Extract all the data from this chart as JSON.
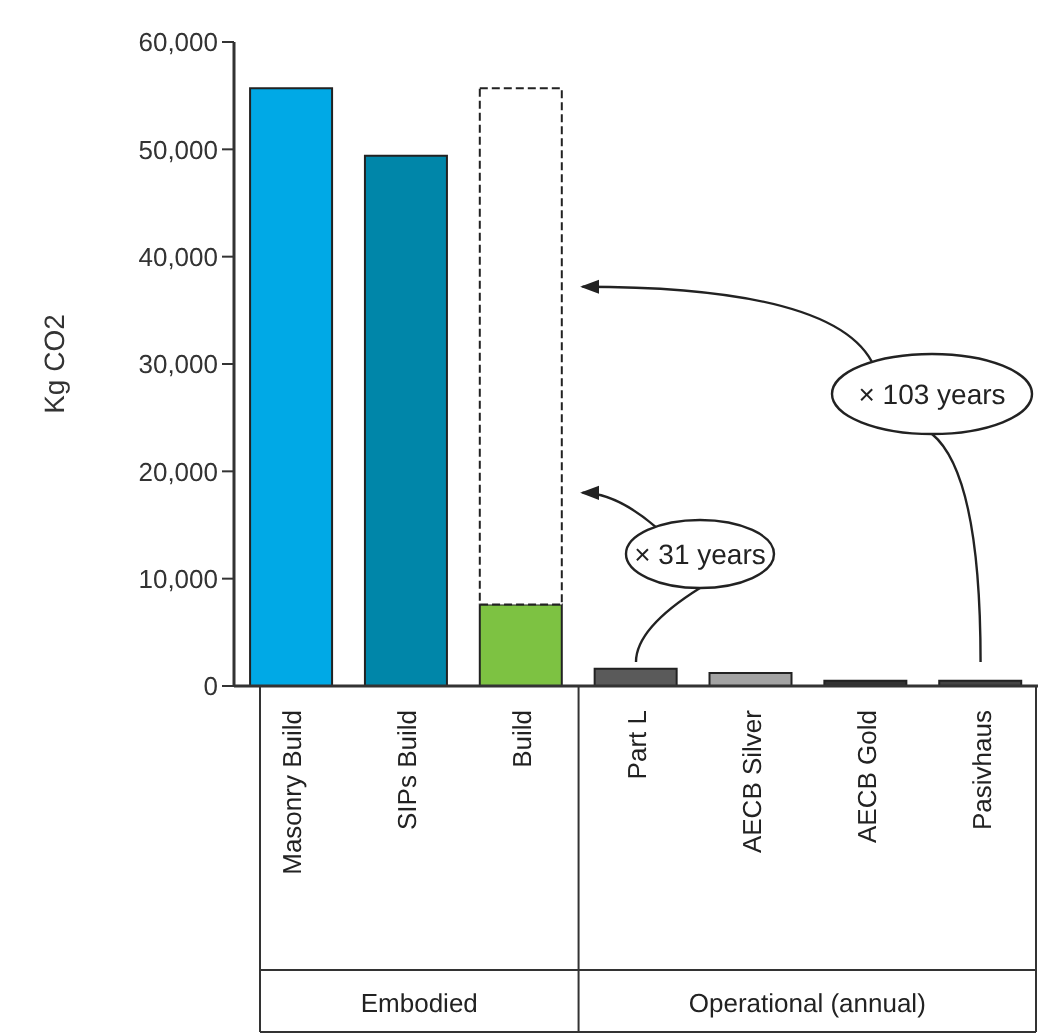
{
  "chart_data": {
    "type": "bar",
    "ylabel": "Kg CO2",
    "categories": [
      "Masonry Build",
      "SIPs Build",
      "Build",
      "Part L",
      "AECB Silver",
      "AECB Gold",
      "Pasivhaus"
    ],
    "stacked": true,
    "series": [
      {
        "colors": [
          "#00a9e6",
          "#0086a9",
          "#7dc242",
          "#5a5a5a",
          "#a3a3a3",
          "#333333",
          "#454545"
        ],
        "values": [
          55700,
          49400,
          7600,
          1600,
          1200,
          500,
          500
        ]
      },
      {
        "color": "#ffffff",
        "line_style": "dashed",
        "values": [
          null,
          null,
          48100,
          null,
          null,
          null,
          null
        ]
      }
    ],
    "ylim": [
      0,
      60000
    ],
    "yticks": [
      {
        "value": 0,
        "label": "0"
      },
      {
        "value": 10000,
        "label": "10,000"
      },
      {
        "value": 20000,
        "label": "20,000"
      },
      {
        "value": 30000,
        "label": "30,000"
      },
      {
        "value": 40000,
        "label": "40,000"
      },
      {
        "value": 50000,
        "label": "50,000"
      },
      {
        "value": 60000,
        "label": "60,000"
      }
    ],
    "annotations": [
      "× 31 years",
      "× 103 years",
      "Embodied",
      "Operational (annual)"
    ]
  }
}
